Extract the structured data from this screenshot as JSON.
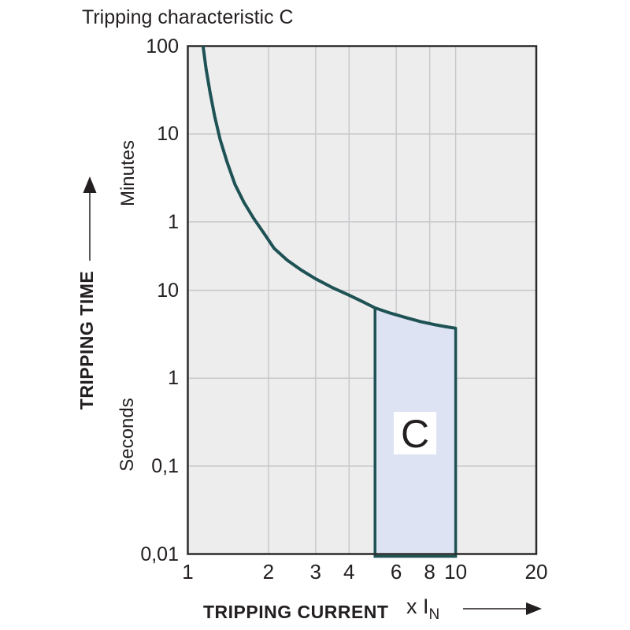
{
  "title": "Tripping characteristic C",
  "y_axis": {
    "label": "TRIPPING TIME",
    "unit_upper": "Minutes",
    "unit_lower": "Seconds",
    "ticks": [
      {
        "label": "100",
        "seconds": 6000
      },
      {
        "label": "10",
        "seconds": 600
      },
      {
        "label": "1",
        "seconds": 60
      },
      {
        "label": "10",
        "seconds": 10
      },
      {
        "label": "1",
        "seconds": 1
      },
      {
        "label": "0,1",
        "seconds": 0.1
      },
      {
        "label": "0,01",
        "seconds": 0.01
      }
    ]
  },
  "x_axis": {
    "label": "TRIPPING CURRENT",
    "multiplier_label": "x I",
    "multiplier_sub": "N",
    "ticks": [
      {
        "label": "1",
        "value": 1
      },
      {
        "label": "2",
        "value": 2
      },
      {
        "label": "3",
        "value": 3
      },
      {
        "label": "4",
        "value": 4
      },
      {
        "label": "6",
        "value": 6
      },
      {
        "label": "8",
        "value": 8
      },
      {
        "label": "10",
        "value": 10
      },
      {
        "label": "20",
        "value": 20
      }
    ]
  },
  "chart_data": {
    "type": "line",
    "title": "Tripping characteristic C",
    "xlabel": "TRIPPING CURRENT (x IN)",
    "ylabel": "TRIPPING TIME (minutes above 60 s, seconds below)",
    "x_scale": "log",
    "y_scale": "log",
    "xlim": [
      1,
      20
    ],
    "ylim_seconds": [
      0.01,
      6000
    ],
    "grid": true,
    "gridlines": {
      "x_values": [
        2,
        3,
        4,
        6,
        8,
        10
      ],
      "y_values_seconds": [
        600,
        60,
        10,
        1,
        0.1
      ]
    },
    "series": [
      {
        "name": "C tripping curve",
        "points_multiple_seconds": [
          [
            1.14,
            6000
          ],
          [
            1.17,
            3300
          ],
          [
            1.21,
            1800
          ],
          [
            1.26,
            950
          ],
          [
            1.32,
            520
          ],
          [
            1.4,
            290
          ],
          [
            1.5,
            160
          ],
          [
            1.62,
            100
          ],
          [
            1.76,
            66
          ],
          [
            1.92,
            45
          ],
          [
            2.1,
            30
          ],
          [
            2.35,
            22
          ],
          [
            2.65,
            17
          ],
          [
            3.0,
            13.5
          ],
          [
            3.45,
            10.8
          ],
          [
            4.0,
            8.8
          ],
          [
            4.5,
            7.4
          ],
          [
            5.0,
            6.3
          ],
          [
            5.7,
            5.5
          ],
          [
            6.5,
            4.9
          ],
          [
            7.4,
            4.4
          ],
          [
            8.4,
            4.05
          ],
          [
            9.2,
            3.85
          ],
          [
            10.0,
            3.7
          ]
        ]
      }
    ],
    "region": {
      "label": "C",
      "x_from": 5,
      "x_to": 10,
      "bottom_seconds": 0.01,
      "top_follows_curve": true
    },
    "colors": {
      "curve": "#1e5254",
      "region_fill": "#dde3f3",
      "plot_bg": "#ededee",
      "grid": "#c7c7c9",
      "border": "#2b2b2b",
      "text": "#231f20"
    }
  }
}
